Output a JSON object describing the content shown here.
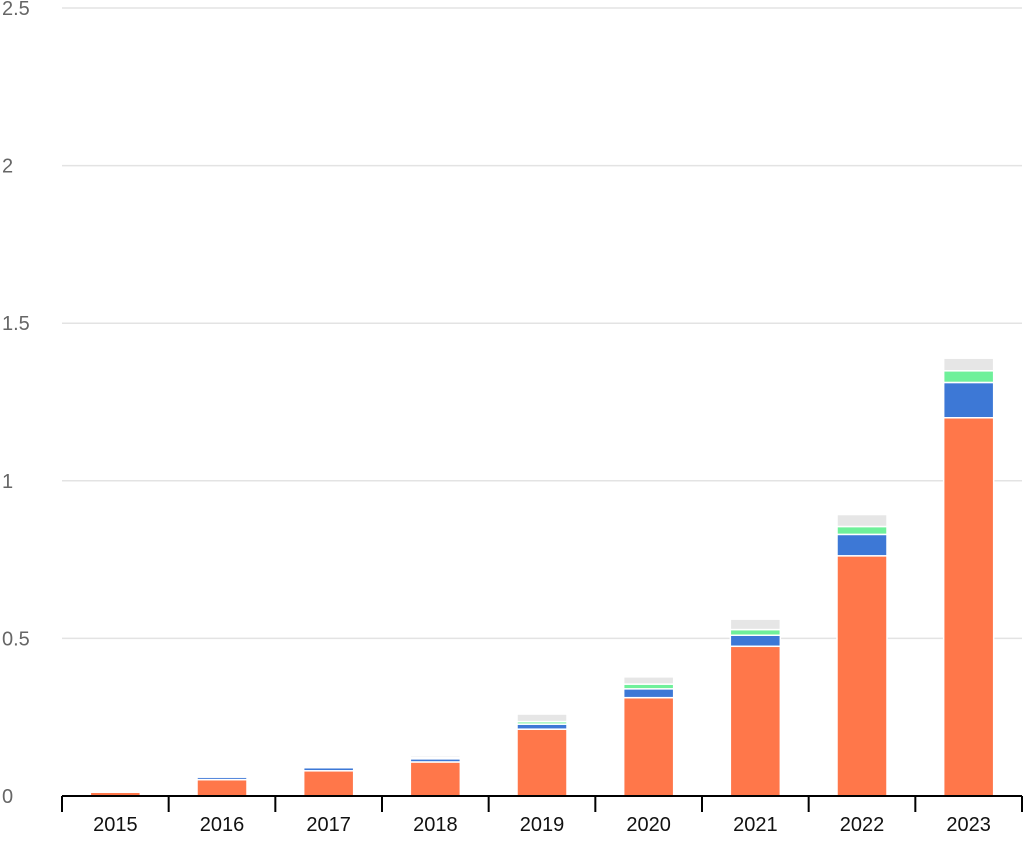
{
  "chart_data": {
    "type": "bar",
    "stacked": true,
    "title": "",
    "xlabel": "",
    "ylabel": "",
    "categories": [
      "2015",
      "2016",
      "2017",
      "2018",
      "2019",
      "2020",
      "2021",
      "2022",
      "2023"
    ],
    "ylim": [
      0,
      2.5
    ],
    "yticks": [
      "0",
      "0.5",
      "1",
      "1.5",
      "2",
      "2.5"
    ],
    "grid": true,
    "legend": "none",
    "series": [
      {
        "color": "#ff774a",
        "values": [
          0.012,
          0.052,
          0.08,
          0.108,
          0.212,
          0.312,
          0.475,
          0.762,
          1.2
        ]
      },
      {
        "color": "#3d78d6",
        "values": [
          0.004,
          0.008,
          0.01,
          0.01,
          0.016,
          0.028,
          0.035,
          0.068,
          0.112
        ]
      },
      {
        "color": "#6ff09a",
        "values": [
          0.001,
          0.002,
          0.003,
          0.004,
          0.008,
          0.015,
          0.018,
          0.025,
          0.037
        ]
      },
      {
        "color": "#e6e6e6",
        "values": [
          0.004,
          0.004,
          0.005,
          0.006,
          0.024,
          0.023,
          0.033,
          0.038,
          0.04
        ]
      }
    ]
  }
}
